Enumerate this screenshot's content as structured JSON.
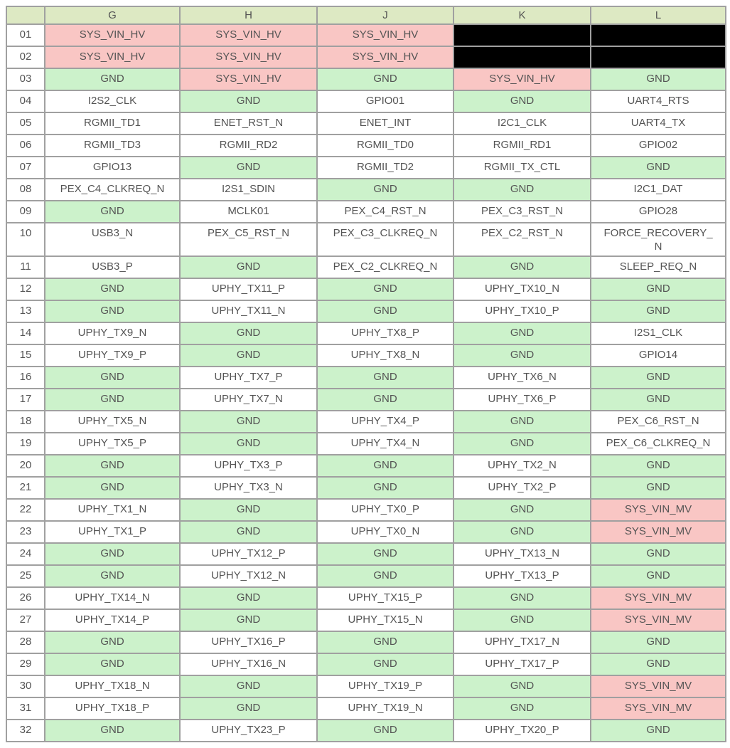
{
  "palette": {
    "header_bg": "#dde9c3",
    "power_bg": "#f9c6c4",
    "ground_bg": "#ccf2cb",
    "signal_bg": "#ffffff",
    "nc_bg": "#000000",
    "border": "#a0a0a0",
    "text": "#545454",
    "row_number_bg": "#ffffff"
  },
  "table": {
    "corner_label": "",
    "columns": [
      "G",
      "H",
      "J",
      "K",
      "L"
    ],
    "rows": [
      {
        "num": "01",
        "cells": [
          {
            "label": "SYS_VIN_HV",
            "type": "power"
          },
          {
            "label": "SYS_VIN_HV",
            "type": "power"
          },
          {
            "label": "SYS_VIN_HV",
            "type": "power"
          },
          {
            "label": "",
            "type": "nc"
          },
          {
            "label": "",
            "type": "nc"
          }
        ]
      },
      {
        "num": "02",
        "cells": [
          {
            "label": "SYS_VIN_HV",
            "type": "power"
          },
          {
            "label": "SYS_VIN_HV",
            "type": "power"
          },
          {
            "label": "SYS_VIN_HV",
            "type": "power"
          },
          {
            "label": "",
            "type": "nc"
          },
          {
            "label": "",
            "type": "nc"
          }
        ]
      },
      {
        "num": "03",
        "cells": [
          {
            "label": "GND",
            "type": "ground"
          },
          {
            "label": "SYS_VIN_HV",
            "type": "power"
          },
          {
            "label": "GND",
            "type": "ground"
          },
          {
            "label": "SYS_VIN_HV",
            "type": "power"
          },
          {
            "label": "GND",
            "type": "ground"
          }
        ]
      },
      {
        "num": "04",
        "cells": [
          {
            "label": "I2S2_CLK",
            "type": "signal"
          },
          {
            "label": "GND",
            "type": "ground"
          },
          {
            "label": "GPIO01",
            "type": "signal"
          },
          {
            "label": "GND",
            "type": "ground"
          },
          {
            "label": "UART4_RTS",
            "type": "signal"
          }
        ]
      },
      {
        "num": "05",
        "cells": [
          {
            "label": "RGMII_TD1",
            "type": "signal"
          },
          {
            "label": "ENET_RST_N",
            "type": "signal"
          },
          {
            "label": "ENET_INT",
            "type": "signal"
          },
          {
            "label": "I2C1_CLK",
            "type": "signal"
          },
          {
            "label": "UART4_TX",
            "type": "signal"
          }
        ]
      },
      {
        "num": "06",
        "cells": [
          {
            "label": "RGMII_TD3",
            "type": "signal"
          },
          {
            "label": "RGMII_RD2",
            "type": "signal"
          },
          {
            "label": "RGMII_TD0",
            "type": "signal"
          },
          {
            "label": "RGMII_RD1",
            "type": "signal"
          },
          {
            "label": "GPIO02",
            "type": "signal"
          }
        ]
      },
      {
        "num": "07",
        "cells": [
          {
            "label": "GPIO13",
            "type": "signal"
          },
          {
            "label": "GND",
            "type": "ground"
          },
          {
            "label": "RGMII_TD2",
            "type": "signal"
          },
          {
            "label": "RGMII_TX_CTL",
            "type": "signal"
          },
          {
            "label": "GND",
            "type": "ground"
          }
        ]
      },
      {
        "num": "08",
        "cells": [
          {
            "label": "PEX_C4_CLKREQ_N",
            "type": "signal"
          },
          {
            "label": "I2S1_SDIN",
            "type": "signal"
          },
          {
            "label": "GND",
            "type": "ground"
          },
          {
            "label": "GND",
            "type": "ground"
          },
          {
            "label": "I2C1_DAT",
            "type": "signal"
          }
        ]
      },
      {
        "num": "09",
        "cells": [
          {
            "label": "GND",
            "type": "ground"
          },
          {
            "label": "MCLK01",
            "type": "signal"
          },
          {
            "label": "PEX_C4_RST_N",
            "type": "signal"
          },
          {
            "label": "PEX_C3_RST_N",
            "type": "signal"
          },
          {
            "label": "GPIO28",
            "type": "signal"
          }
        ]
      },
      {
        "num": "10",
        "cells": [
          {
            "label": "USB3_N",
            "type": "signal"
          },
          {
            "label": "PEX_C5_RST_N",
            "type": "signal"
          },
          {
            "label": "PEX_C3_CLKREQ_N",
            "type": "signal"
          },
          {
            "label": "PEX_C2_RST_N",
            "type": "signal"
          },
          {
            "label": "FORCE_RECOVERY_N",
            "type": "signal"
          }
        ]
      },
      {
        "num": "11",
        "cells": [
          {
            "label": "USB3_P",
            "type": "signal"
          },
          {
            "label": "GND",
            "type": "ground"
          },
          {
            "label": "PEX_C2_CLKREQ_N",
            "type": "signal"
          },
          {
            "label": "GND",
            "type": "ground"
          },
          {
            "label": "SLEEP_REQ_N",
            "type": "signal"
          }
        ]
      },
      {
        "num": "12",
        "cells": [
          {
            "label": "GND",
            "type": "ground"
          },
          {
            "label": "UPHY_TX11_P",
            "type": "signal"
          },
          {
            "label": "GND",
            "type": "ground"
          },
          {
            "label": "UPHY_TX10_N",
            "type": "signal"
          },
          {
            "label": "GND",
            "type": "ground"
          }
        ]
      },
      {
        "num": "13",
        "cells": [
          {
            "label": "GND",
            "type": "ground"
          },
          {
            "label": "UPHY_TX11_N",
            "type": "signal"
          },
          {
            "label": "GND",
            "type": "ground"
          },
          {
            "label": "UPHY_TX10_P",
            "type": "signal"
          },
          {
            "label": "GND",
            "type": "ground"
          }
        ]
      },
      {
        "num": "14",
        "cells": [
          {
            "label": "UPHY_TX9_N",
            "type": "signal"
          },
          {
            "label": "GND",
            "type": "ground"
          },
          {
            "label": "UPHY_TX8_P",
            "type": "signal"
          },
          {
            "label": "GND",
            "type": "ground"
          },
          {
            "label": "I2S1_CLK",
            "type": "signal"
          }
        ]
      },
      {
        "num": "15",
        "cells": [
          {
            "label": "UPHY_TX9_P",
            "type": "signal"
          },
          {
            "label": "GND",
            "type": "ground"
          },
          {
            "label": "UPHY_TX8_N",
            "type": "signal"
          },
          {
            "label": "GND",
            "type": "ground"
          },
          {
            "label": "GPIO14",
            "type": "signal"
          }
        ]
      },
      {
        "num": "16",
        "cells": [
          {
            "label": "GND",
            "type": "ground"
          },
          {
            "label": "UPHY_TX7_P",
            "type": "signal"
          },
          {
            "label": "GND",
            "type": "ground"
          },
          {
            "label": "UPHY_TX6_N",
            "type": "signal"
          },
          {
            "label": "GND",
            "type": "ground"
          }
        ]
      },
      {
        "num": "17",
        "cells": [
          {
            "label": "GND",
            "type": "ground"
          },
          {
            "label": "UPHY_TX7_N",
            "type": "signal"
          },
          {
            "label": "GND",
            "type": "ground"
          },
          {
            "label": "UPHY_TX6_P",
            "type": "signal"
          },
          {
            "label": "GND",
            "type": "ground"
          }
        ]
      },
      {
        "num": "18",
        "cells": [
          {
            "label": "UPHY_TX5_N",
            "type": "signal"
          },
          {
            "label": "GND",
            "type": "ground"
          },
          {
            "label": "UPHY_TX4_P",
            "type": "signal"
          },
          {
            "label": "GND",
            "type": "ground"
          },
          {
            "label": "PEX_C6_RST_N",
            "type": "signal"
          }
        ]
      },
      {
        "num": "19",
        "cells": [
          {
            "label": "UPHY_TX5_P",
            "type": "signal"
          },
          {
            "label": "GND",
            "type": "ground"
          },
          {
            "label": "UPHY_TX4_N",
            "type": "signal"
          },
          {
            "label": "GND",
            "type": "ground"
          },
          {
            "label": "PEX_C6_CLKREQ_N",
            "type": "signal"
          }
        ]
      },
      {
        "num": "20",
        "cells": [
          {
            "label": "GND",
            "type": "ground"
          },
          {
            "label": "UPHY_TX3_P",
            "type": "signal"
          },
          {
            "label": "GND",
            "type": "ground"
          },
          {
            "label": "UPHY_TX2_N",
            "type": "signal"
          },
          {
            "label": "GND",
            "type": "ground"
          }
        ]
      },
      {
        "num": "21",
        "cells": [
          {
            "label": "GND",
            "type": "ground"
          },
          {
            "label": "UPHY_TX3_N",
            "type": "signal"
          },
          {
            "label": "GND",
            "type": "ground"
          },
          {
            "label": "UPHY_TX2_P",
            "type": "signal"
          },
          {
            "label": "GND",
            "type": "ground"
          }
        ]
      },
      {
        "num": "22",
        "cells": [
          {
            "label": "UPHY_TX1_N",
            "type": "signal"
          },
          {
            "label": "GND",
            "type": "ground"
          },
          {
            "label": "UPHY_TX0_P",
            "type": "signal"
          },
          {
            "label": "GND",
            "type": "ground"
          },
          {
            "label": "SYS_VIN_MV",
            "type": "power"
          }
        ]
      },
      {
        "num": "23",
        "cells": [
          {
            "label": "UPHY_TX1_P",
            "type": "signal"
          },
          {
            "label": "GND",
            "type": "ground"
          },
          {
            "label": "UPHY_TX0_N",
            "type": "signal"
          },
          {
            "label": "GND",
            "type": "ground"
          },
          {
            "label": "SYS_VIN_MV",
            "type": "power"
          }
        ]
      },
      {
        "num": "24",
        "cells": [
          {
            "label": "GND",
            "type": "ground"
          },
          {
            "label": "UPHY_TX12_P",
            "type": "signal"
          },
          {
            "label": "GND",
            "type": "ground"
          },
          {
            "label": "UPHY_TX13_N",
            "type": "signal"
          },
          {
            "label": "GND",
            "type": "ground"
          }
        ]
      },
      {
        "num": "25",
        "cells": [
          {
            "label": "GND",
            "type": "ground"
          },
          {
            "label": "UPHY_TX12_N",
            "type": "signal"
          },
          {
            "label": "GND",
            "type": "ground"
          },
          {
            "label": "UPHY_TX13_P",
            "type": "signal"
          },
          {
            "label": "GND",
            "type": "ground"
          }
        ]
      },
      {
        "num": "26",
        "cells": [
          {
            "label": "UPHY_TX14_N",
            "type": "signal"
          },
          {
            "label": "GND",
            "type": "ground"
          },
          {
            "label": "UPHY_TX15_P",
            "type": "signal"
          },
          {
            "label": "GND",
            "type": "ground"
          },
          {
            "label": "SYS_VIN_MV",
            "type": "power"
          }
        ]
      },
      {
        "num": "27",
        "cells": [
          {
            "label": "UPHY_TX14_P",
            "type": "signal"
          },
          {
            "label": "GND",
            "type": "ground"
          },
          {
            "label": "UPHY_TX15_N",
            "type": "signal"
          },
          {
            "label": "GND",
            "type": "ground"
          },
          {
            "label": "SYS_VIN_MV",
            "type": "power"
          }
        ]
      },
      {
        "num": "28",
        "cells": [
          {
            "label": "GND",
            "type": "ground"
          },
          {
            "label": "UPHY_TX16_P",
            "type": "signal"
          },
          {
            "label": "GND",
            "type": "ground"
          },
          {
            "label": "UPHY_TX17_N",
            "type": "signal"
          },
          {
            "label": "GND",
            "type": "ground"
          }
        ]
      },
      {
        "num": "29",
        "cells": [
          {
            "label": "GND",
            "type": "ground"
          },
          {
            "label": "UPHY_TX16_N",
            "type": "signal"
          },
          {
            "label": "GND",
            "type": "ground"
          },
          {
            "label": "UPHY_TX17_P",
            "type": "signal"
          },
          {
            "label": "GND",
            "type": "ground"
          }
        ]
      },
      {
        "num": "30",
        "cells": [
          {
            "label": "UPHY_TX18_N",
            "type": "signal"
          },
          {
            "label": "GND",
            "type": "ground"
          },
          {
            "label": "UPHY_TX19_P",
            "type": "signal"
          },
          {
            "label": "GND",
            "type": "ground"
          },
          {
            "label": "SYS_VIN_MV",
            "type": "power"
          }
        ]
      },
      {
        "num": "31",
        "cells": [
          {
            "label": "UPHY_TX18_P",
            "type": "signal"
          },
          {
            "label": "GND",
            "type": "ground"
          },
          {
            "label": "UPHY_TX19_N",
            "type": "signal"
          },
          {
            "label": "GND",
            "type": "ground"
          },
          {
            "label": "SYS_VIN_MV",
            "type": "power"
          }
        ]
      },
      {
        "num": "32",
        "cells": [
          {
            "label": "GND",
            "type": "ground"
          },
          {
            "label": "UPHY_TX23_P",
            "type": "signal"
          },
          {
            "label": "GND",
            "type": "ground"
          },
          {
            "label": "UPHY_TX20_P",
            "type": "signal"
          },
          {
            "label": "GND",
            "type": "ground"
          }
        ]
      }
    ]
  }
}
